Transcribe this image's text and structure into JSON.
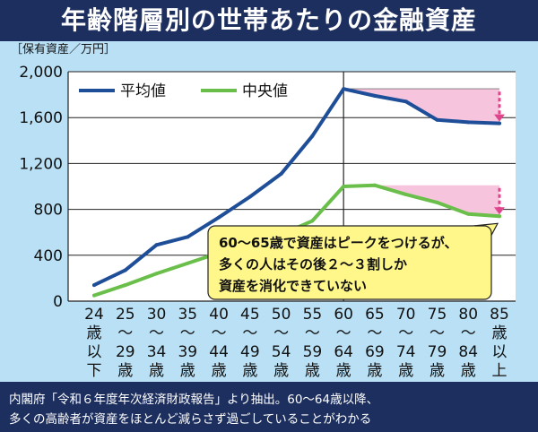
{
  "title": "年齢階層別の世帯あたりの金融資産",
  "chart_data": {
    "type": "line",
    "ylabel": "［保有資産／万円］",
    "ylim": [
      0,
      2000
    ],
    "yticks": [
      "0",
      "400",
      "800",
      "1,200",
      "1,600",
      "2,000"
    ],
    "ytick_values": [
      0,
      400,
      800,
      1200,
      1600,
      2000
    ],
    "categories": [
      [
        "24",
        "歳",
        "以",
        "下"
      ],
      [
        "25",
        "～",
        "29",
        "歳"
      ],
      [
        "30",
        "～",
        "34",
        "歳"
      ],
      [
        "35",
        "～",
        "39",
        "歳"
      ],
      [
        "40",
        "～",
        "44",
        "歳"
      ],
      [
        "45",
        "～",
        "49",
        "歳"
      ],
      [
        "50",
        "～",
        "54",
        "歳"
      ],
      [
        "55",
        "～",
        "59",
        "歳"
      ],
      [
        "60",
        "～",
        "64",
        "歳"
      ],
      [
        "65",
        "～",
        "69",
        "歳"
      ],
      [
        "70",
        "～",
        "74",
        "歳"
      ],
      [
        "75",
        "～",
        "79",
        "歳"
      ],
      [
        "80",
        "～",
        "84",
        "歳"
      ],
      [
        "85",
        "歳",
        "以",
        "上"
      ]
    ],
    "series": [
      {
        "name": "平均値",
        "color": "#1f4e99",
        "values": [
          140,
          270,
          490,
          560,
          730,
          910,
          1110,
          1440,
          1850,
          1790,
          1740,
          1580,
          1560,
          1550
        ]
      },
      {
        "name": "中央値",
        "color": "#6abf4b",
        "values": [
          50,
          140,
          240,
          330,
          420,
          490,
          580,
          700,
          1000,
          1010,
          930,
          860,
          760,
          740
        ]
      }
    ],
    "legend_position": "top-left",
    "grid": "horizontal",
    "annotation": [
      "60～65歳で資産はピークをつけるが、",
      "多くの人はその後２～３割しか",
      "資産を消化できていない"
    ]
  },
  "notes": [
    "内閣府「令和６年度年次経済財政報告」より抽出。60～64歳以降、",
    "多くの高齢者が資産をほとんど減らさず過ごしていることがわかる"
  ]
}
